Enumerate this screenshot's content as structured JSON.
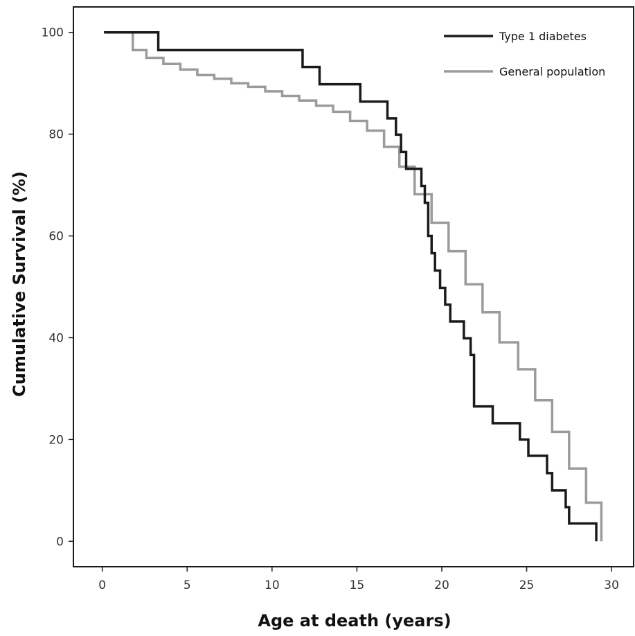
{
  "chart_data": {
    "type": "line",
    "step": true,
    "title": "",
    "xlabel": "Age at death (years)",
    "ylabel": "Cumulative Survival (%)",
    "xlim": [
      -1.7,
      31.3
    ],
    "ylim": [
      -5,
      105
    ],
    "xticks": [
      0,
      5,
      10,
      15,
      20,
      25,
      30
    ],
    "yticks": [
      0,
      20,
      40,
      60,
      80,
      100
    ],
    "grid": false,
    "legend_position": "top-right",
    "series": [
      {
        "name": "Type 1 diabetes",
        "color": "#1a1a1a",
        "x": [
          0.1,
          3.3,
          11.8,
          12.8,
          15.2,
          16.8,
          17.3,
          17.6,
          17.9,
          18.1,
          18.8,
          19.0,
          19.2,
          19.4,
          19.6,
          19.9,
          20.2,
          20.5,
          20.7,
          21.3,
          21.7,
          21.9,
          23.0,
          24.6,
          25.1,
          26.2,
          26.5,
          27.3,
          27.5,
          29.1
        ],
        "y": [
          100,
          96.5,
          93.2,
          89.8,
          86.4,
          83.1,
          79.9,
          76.5,
          73.2,
          73.2,
          69.8,
          66.5,
          60.0,
          56.6,
          53.2,
          49.8,
          46.5,
          43.2,
          43.2,
          39.9,
          36.6,
          26.5,
          23.2,
          20.0,
          16.8,
          13.4,
          10.0,
          6.7,
          3.5,
          0
        ]
      },
      {
        "name": "General population",
        "color": "#9b9b9b",
        "x": [
          1.5,
          1.8,
          2.6,
          3.6,
          4.6,
          5.6,
          6.6,
          7.6,
          8.6,
          9.6,
          10.6,
          11.6,
          12.6,
          13.6,
          14.6,
          15.6,
          16.6,
          17.5,
          18.4,
          19.4,
          20.4,
          21.4,
          22.4,
          23.4,
          24.5,
          25.5,
          26.5,
          27.5,
          28.5,
          29.4
        ],
        "y": [
          100,
          96.5,
          95.0,
          93.8,
          92.7,
          91.6,
          90.9,
          90.0,
          89.3,
          88.4,
          87.5,
          86.6,
          85.6,
          84.4,
          82.6,
          80.7,
          77.5,
          73.6,
          68.2,
          62.6,
          57.0,
          50.5,
          45.0,
          39.1,
          33.8,
          27.7,
          21.5,
          14.3,
          7.6,
          0
        ]
      }
    ]
  }
}
